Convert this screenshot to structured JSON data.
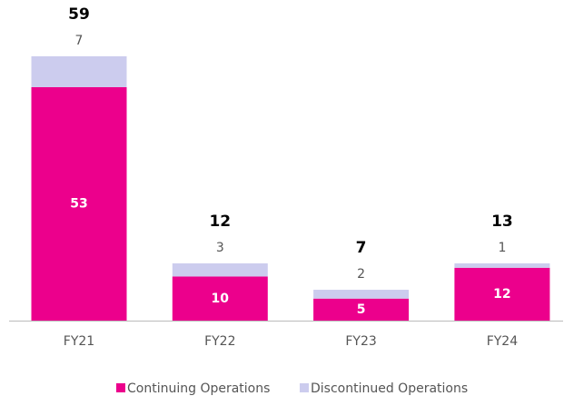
{
  "chart_data": {
    "type": "stacked_bar",
    "categories": [
      "FY21",
      "FY22",
      "FY23",
      "FY24"
    ],
    "series": [
      {
        "name": "Continuing Operations",
        "color": "#ec008c",
        "values": [
          53,
          10,
          5,
          12
        ]
      },
      {
        "name": "Discontinued Operations",
        "color": "#ccccee",
        "values": [
          7,
          3,
          2,
          1
        ]
      }
    ],
    "totals": [
      59,
      12,
      7,
      13
    ],
    "ylim": [
      0,
      60
    ]
  }
}
